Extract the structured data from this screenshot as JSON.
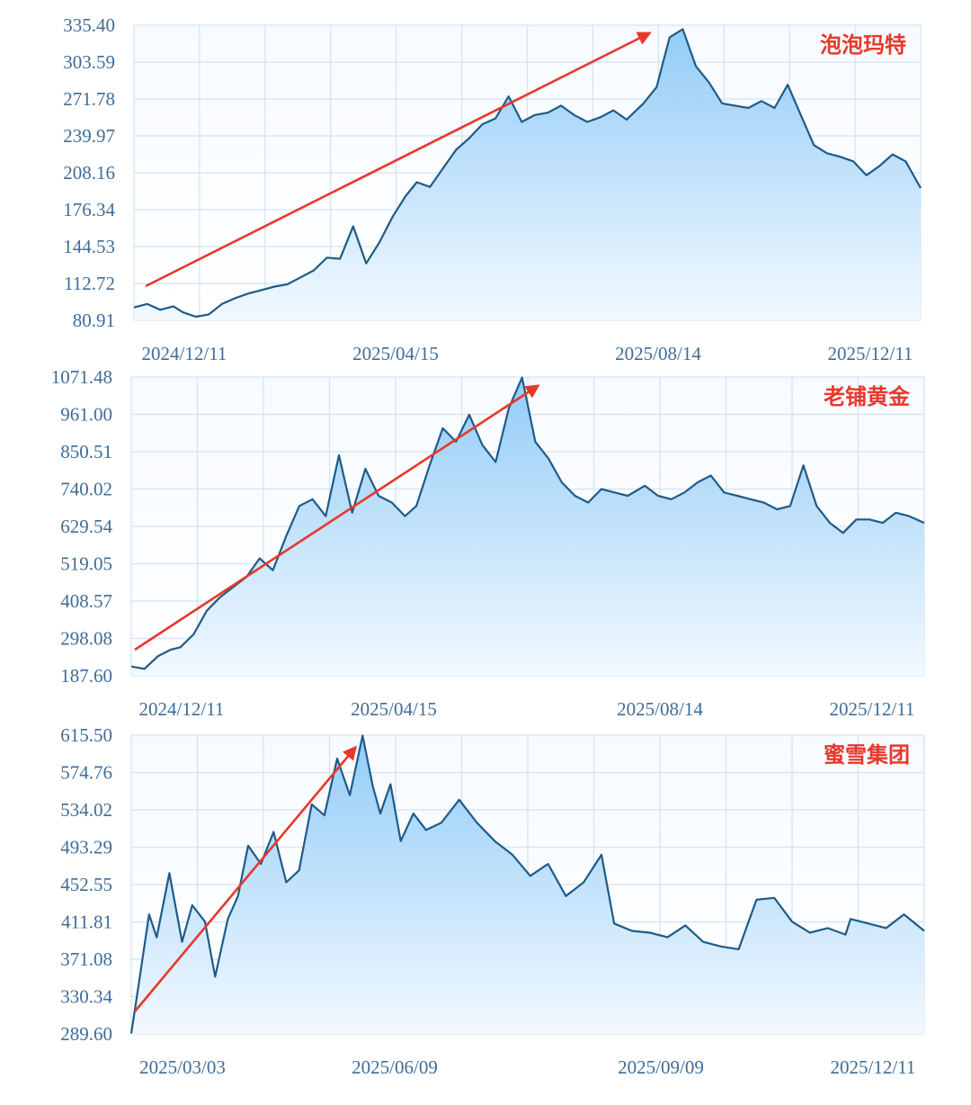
{
  "chart_data": [
    {
      "type": "area",
      "title": "泡泡玛特",
      "x_tick_labels": [
        "2024/12/11",
        "2025/04/15",
        "2025/08/14",
        "2025/12/11"
      ],
      "y_tick_labels": [
        "335.40",
        "303.59",
        "271.78",
        "239.97",
        "208.16",
        "176.34",
        "144.53",
        "112.72",
        "80.91"
      ],
      "ylim": [
        80.91,
        335.4
      ],
      "x_range": [
        "2024/11/15",
        "2026/01/09"
      ],
      "grid": true,
      "series": [
        {
          "x": [
            "2024/11/15",
            "2024/11/22",
            "2024/11/29",
            "2024/12/06",
            "2024/12/11",
            "2024/12/18",
            "2024/12/25",
            "2025/01/01",
            "2025/01/08",
            "2025/01/15",
            "2025/01/22",
            "2025/01/29",
            "2025/02/05",
            "2025/02/12",
            "2025/02/19",
            "2025/02/26",
            "2025/03/05",
            "2025/03/12",
            "2025/03/19",
            "2025/03/26",
            "2025/04/02",
            "2025/04/09",
            "2025/04/15",
            "2025/04/22",
            "2025/04/29",
            "2025/05/06",
            "2025/05/13",
            "2025/05/20",
            "2025/05/27",
            "2025/06/03",
            "2025/06/10",
            "2025/06/17",
            "2025/06/24",
            "2025/07/01",
            "2025/07/08",
            "2025/07/15",
            "2025/07/22",
            "2025/07/29",
            "2025/08/05",
            "2025/08/14",
            "2025/08/21",
            "2025/08/28",
            "2025/09/04",
            "2025/09/11",
            "2025/09/18",
            "2025/09/25",
            "2025/10/02",
            "2025/10/09",
            "2025/10/16",
            "2025/10/23",
            "2025/10/30",
            "2025/11/06",
            "2025/11/13",
            "2025/11/20",
            "2025/11/27",
            "2025/12/04",
            "2025/12/11",
            "2025/12/18",
            "2025/12/25",
            "2026/01/01",
            "2026/01/09"
          ],
          "values": [
            92,
            95,
            90,
            93,
            88,
            84,
            86,
            95,
            100,
            104,
            107,
            110,
            112,
            118,
            124,
            135,
            134,
            162,
            130,
            148,
            170,
            188,
            200,
            196,
            212,
            228,
            238,
            250,
            255,
            274,
            252,
            258,
            260,
            266,
            258,
            252,
            256,
            262,
            254,
            268,
            282,
            325,
            332,
            300,
            286,
            268,
            266,
            264,
            270,
            264,
            284,
            258,
            232,
            225,
            222,
            218,
            206,
            214,
            224,
            218,
            195
          ]
        }
      ]
    },
    {
      "type": "area",
      "title": "老铺黄金",
      "x_tick_labels": [
        "2024/12/11",
        "2025/04/15",
        "2025/08/14",
        "2025/12/11"
      ],
      "y_tick_labels": [
        "1071.48",
        "961.00",
        "850.51",
        "740.02",
        "629.54",
        "519.05",
        "408.57",
        "298.08",
        "187.60"
      ],
      "ylim": [
        187.6,
        1071.48
      ],
      "x_range": [
        "2024/11/15",
        "2026/01/09"
      ],
      "grid": true,
      "series": [
        {
          "x": [
            "2024/11/15",
            "2024/11/22",
            "2024/11/29",
            "2024/12/06",
            "2024/12/11",
            "2024/12/18",
            "2024/12/25",
            "2025/01/01",
            "2025/01/08",
            "2025/01/15",
            "2025/01/22",
            "2025/01/29",
            "2025/02/05",
            "2025/02/12",
            "2025/02/19",
            "2025/02/26",
            "2025/03/05",
            "2025/03/12",
            "2025/03/19",
            "2025/03/26",
            "2025/04/02",
            "2025/04/09",
            "2025/04/15",
            "2025/04/22",
            "2025/04/29",
            "2025/05/06",
            "2025/05/13",
            "2025/05/20",
            "2025/05/27",
            "2025/06/03",
            "2025/06/10",
            "2025/06/17",
            "2025/06/24",
            "2025/07/01",
            "2025/07/08",
            "2025/07/15",
            "2025/07/22",
            "2025/07/29",
            "2025/08/05",
            "2025/08/14",
            "2025/08/21",
            "2025/08/28",
            "2025/09/04",
            "2025/09/11",
            "2025/09/18",
            "2025/09/25",
            "2025/10/02",
            "2025/10/09",
            "2025/10/16",
            "2025/10/23",
            "2025/10/30",
            "2025/11/06",
            "2025/11/13",
            "2025/11/20",
            "2025/11/27",
            "2025/12/04",
            "2025/12/11",
            "2025/12/18",
            "2025/12/25",
            "2026/01/01",
            "2026/01/09"
          ],
          "values": [
            215,
            208,
            245,
            265,
            272,
            310,
            380,
            420,
            450,
            480,
            535,
            500,
            600,
            690,
            710,
            660,
            840,
            670,
            800,
            720,
            700,
            660,
            690,
            810,
            920,
            880,
            960,
            870,
            820,
            980,
            1070,
            880,
            830,
            760,
            720,
            700,
            740,
            730,
            720,
            750,
            720,
            710,
            730,
            760,
            780,
            730,
            720,
            710,
            700,
            680,
            690,
            810,
            690,
            640,
            610,
            650,
            650,
            640,
            670,
            660,
            640
          ]
        }
      ]
    },
    {
      "type": "area",
      "title": "蜜雪集团",
      "x_tick_labels": [
        "2025/03/03",
        "2025/06/09",
        "2025/09/09",
        "2025/12/11"
      ],
      "y_tick_labels": [
        "615.50",
        "574.76",
        "534.02",
        "493.29",
        "452.55",
        "411.81",
        "371.08",
        "330.34",
        "289.60"
      ],
      "ylim": [
        289.6,
        615.5
      ],
      "x_range": [
        "2025/03/03",
        "2026/01/09"
      ],
      "grid": true,
      "series": [
        {
          "x": [
            "2025/03/03",
            "2025/03/06",
            "2025/03/10",
            "2025/03/13",
            "2025/03/18",
            "2025/03/23",
            "2025/03/27",
            "2025/04/01",
            "2025/04/05",
            "2025/04/10",
            "2025/04/14",
            "2025/04/18",
            "2025/04/23",
            "2025/04/28",
            "2025/05/03",
            "2025/05/08",
            "2025/05/13",
            "2025/05/18",
            "2025/05/23",
            "2025/05/28",
            "2025/06/02",
            "2025/06/06",
            "2025/06/09",
            "2025/06/13",
            "2025/06/17",
            "2025/06/22",
            "2025/06/27",
            "2025/07/03",
            "2025/07/10",
            "2025/07/17",
            "2025/07/24",
            "2025/07/31",
            "2025/08/07",
            "2025/08/14",
            "2025/08/21",
            "2025/08/28",
            "2025/09/04",
            "2025/09/09",
            "2025/09/16",
            "2025/09/23",
            "2025/09/30",
            "2025/10/07",
            "2025/10/14",
            "2025/10/21",
            "2025/10/28",
            "2025/11/04",
            "2025/11/11",
            "2025/11/18",
            "2025/11/25",
            "2025/12/02",
            "2025/12/09",
            "2025/12/11",
            "2025/12/18",
            "2025/12/25",
            "2026/01/01",
            "2026/01/09"
          ],
          "values": [
            290,
            345,
            420,
            395,
            465,
            390,
            430,
            412,
            352,
            415,
            440,
            495,
            475,
            510,
            455,
            468,
            540,
            528,
            590,
            550,
            615,
            560,
            530,
            562,
            500,
            530,
            512,
            520,
            545,
            520,
            500,
            485,
            462,
            475,
            440,
            455,
            485,
            410,
            402,
            400,
            395,
            408,
            390,
            385,
            382,
            436,
            438,
            412,
            400,
            405,
            398,
            415,
            410,
            405,
            420,
            402
          ]
        }
      ]
    }
  ]
}
